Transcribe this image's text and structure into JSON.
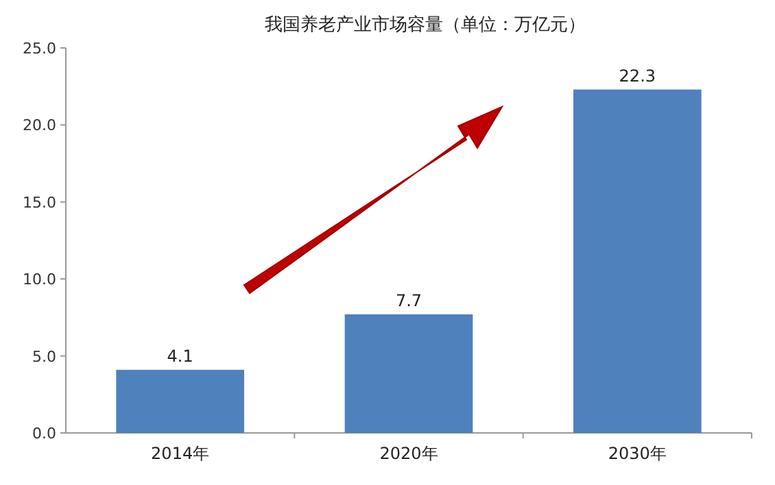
{
  "chart_data": {
    "type": "bar",
    "title": "我国养老产业市场容量（单位：万亿元）",
    "categories": [
      "2014年",
      "2020年",
      "2030年"
    ],
    "values": [
      4.1,
      7.7,
      22.3
    ],
    "color": "#4f81bd",
    "ylim": [
      0,
      25
    ],
    "yticks": [
      {
        "value": 0,
        "label": "0.0"
      },
      {
        "value": 5,
        "label": "5.0"
      },
      {
        "value": 10,
        "label": "10.0"
      },
      {
        "value": 15,
        "label": "15.0"
      },
      {
        "value": 20,
        "label": "20.0"
      },
      {
        "value": 25,
        "label": "25.0"
      }
    ],
    "data_labels": true
  }
}
